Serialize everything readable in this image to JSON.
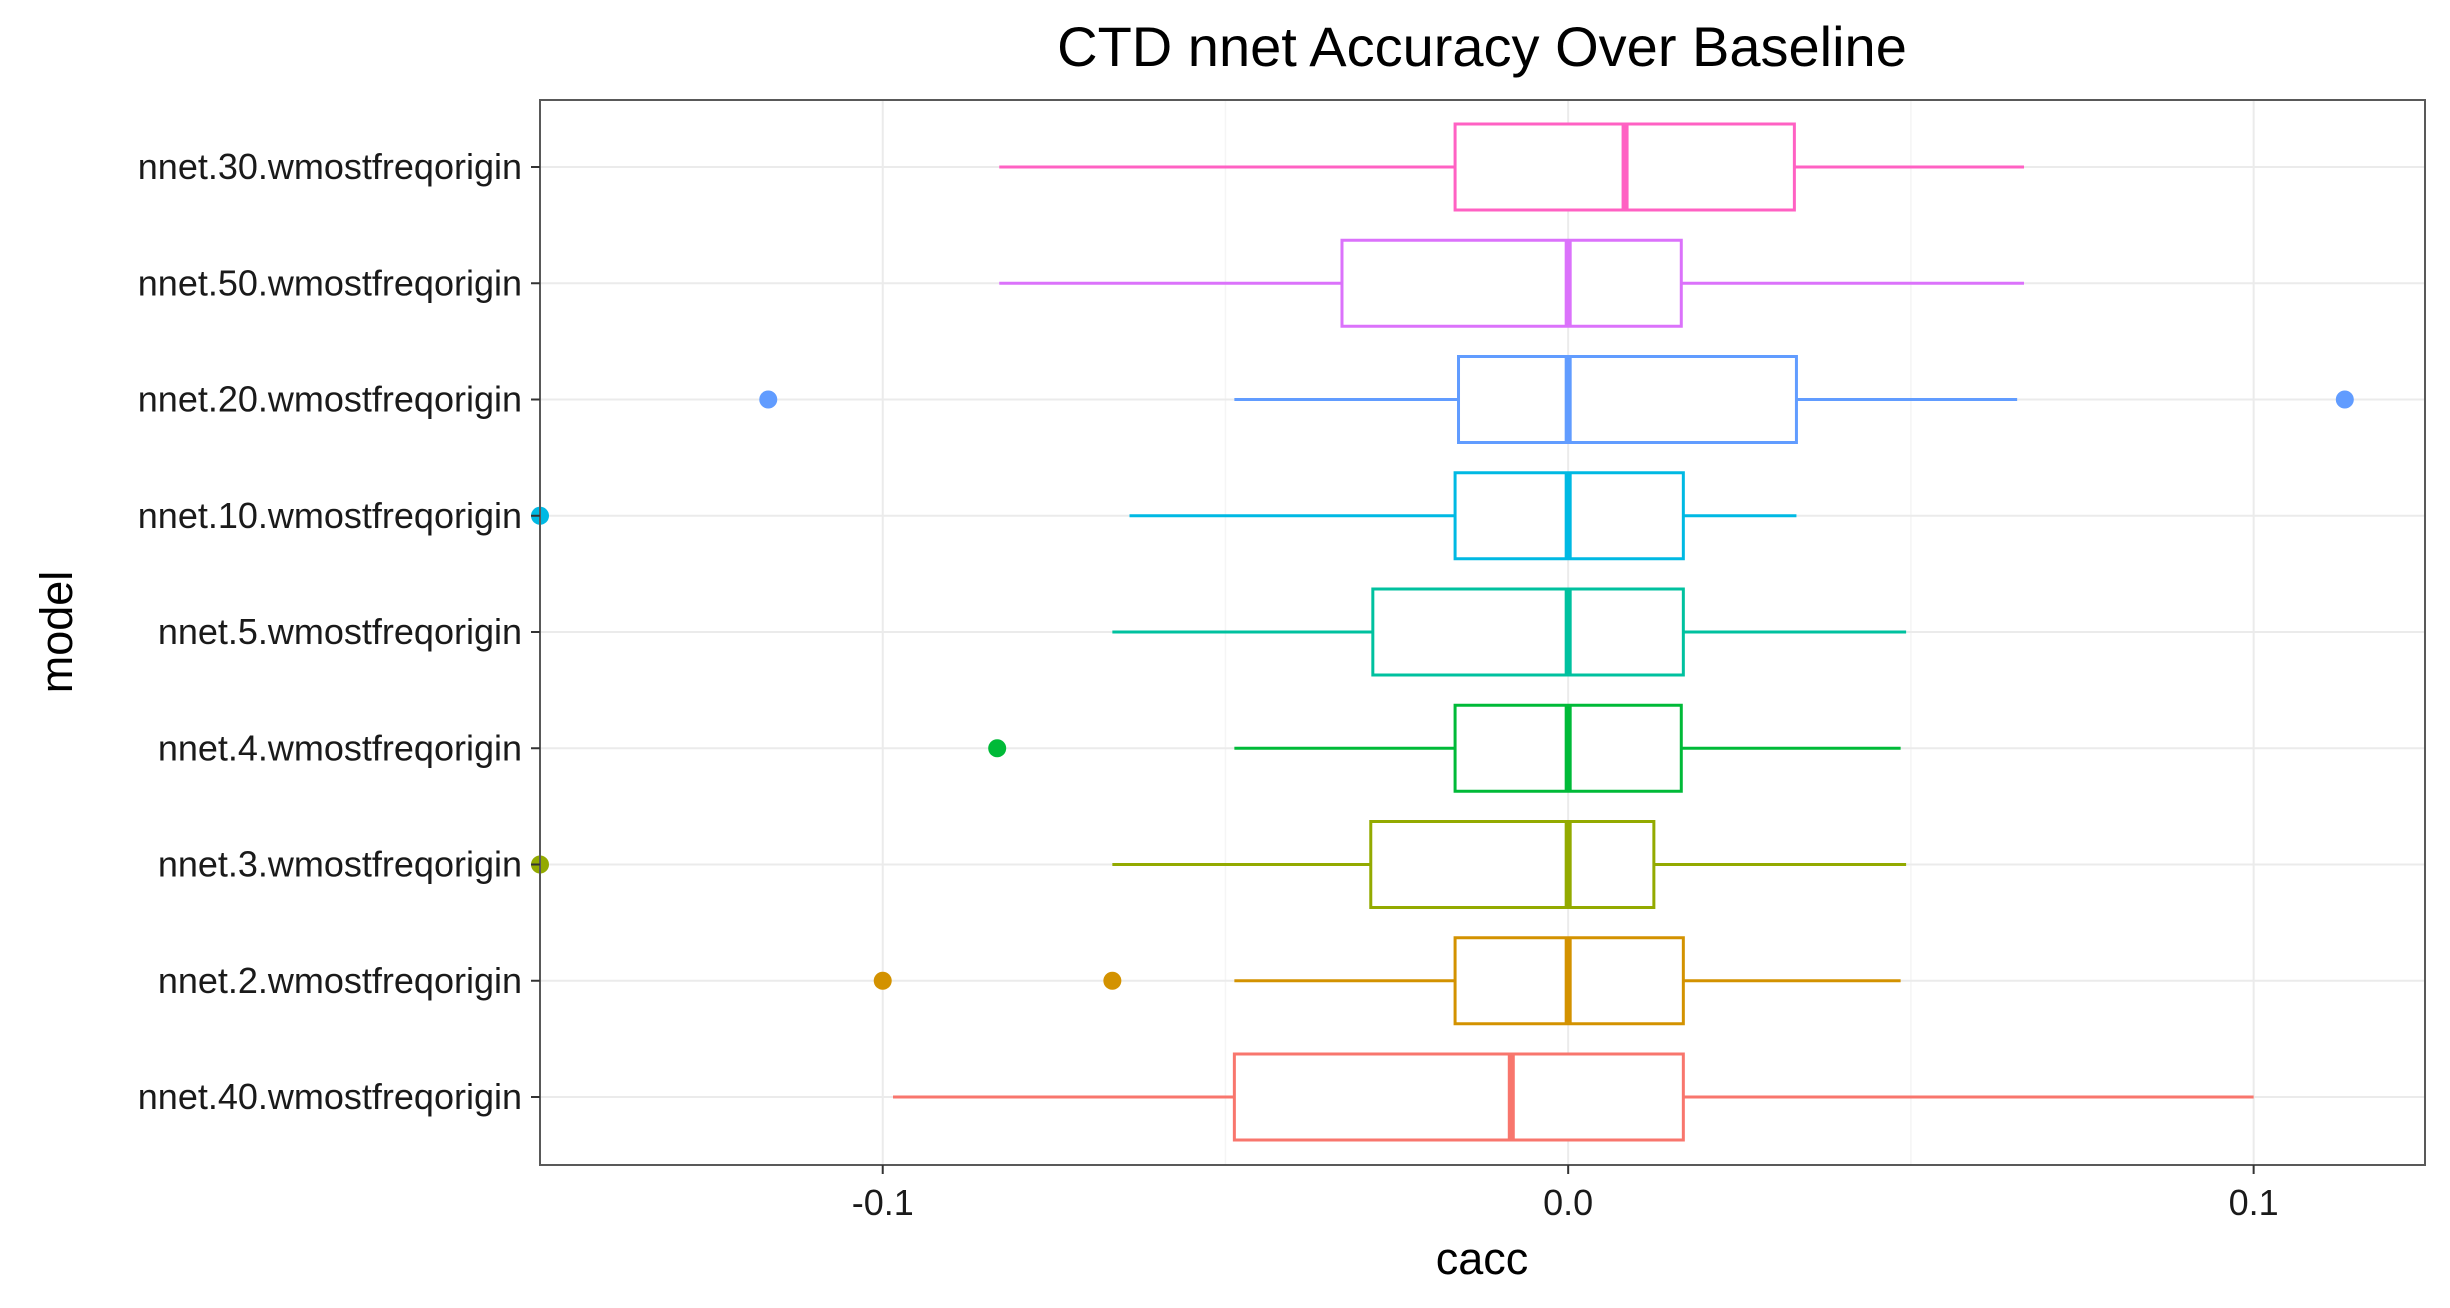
{
  "chart_data": {
    "type": "boxplot",
    "orientation": "horizontal",
    "title": "CTD nnet Accuracy Over Baseline",
    "xlabel": "cacc",
    "ylabel": "model",
    "xlim": [
      -0.15,
      0.125
    ],
    "xticks": [
      -0.1,
      0.0,
      0.1
    ],
    "xtick_labels": [
      "-0.1",
      "0.0",
      "0.1"
    ],
    "grid": true,
    "legend": "none",
    "categories_top_to_bottom": [
      "nnet.30.wmostfreqorigin",
      "nnet.50.wmostfreqorigin",
      "nnet.20.wmostfreqorigin",
      "nnet.10.wmostfreqorigin",
      "nnet.5.wmostfreqorigin",
      "nnet.4.wmostfreqorigin",
      "nnet.3.wmostfreqorigin",
      "nnet.2.wmostfreqorigin",
      "nnet.40.wmostfreqorigin"
    ],
    "series": [
      {
        "name": "nnet.30.wmostfreqorigin",
        "color": "#FF61C3",
        "whisker_low": -0.083,
        "q1": -0.0165,
        "median": 0.0083,
        "q3": 0.033,
        "whisker_high": 0.0665,
        "outliers": []
      },
      {
        "name": "nnet.50.wmostfreqorigin",
        "color": "#DB72FB",
        "whisker_low": -0.083,
        "q1": -0.033,
        "median": 0.0,
        "q3": 0.0165,
        "whisker_high": 0.0665,
        "outliers": []
      },
      {
        "name": "nnet.20.wmostfreqorigin",
        "color": "#619CFF",
        "whisker_low": -0.0487,
        "q1": -0.016,
        "median": 0.0,
        "q3": 0.0333,
        "whisker_high": 0.0655,
        "outliers": [
          -0.1167,
          0.1133
        ]
      },
      {
        "name": "nnet.10.wmostfreqorigin",
        "color": "#00B9E3",
        "whisker_low": -0.064,
        "q1": -0.0165,
        "median": 0.0,
        "q3": 0.0168,
        "whisker_high": 0.0333,
        "outliers": [
          -0.15
        ]
      },
      {
        "name": "nnet.5.wmostfreqorigin",
        "color": "#00C19F",
        "whisker_low": -0.0665,
        "q1": -0.0285,
        "median": 0.0,
        "q3": 0.0168,
        "whisker_high": 0.0493,
        "outliers": []
      },
      {
        "name": "nnet.4.wmostfreqorigin",
        "color": "#00BA38",
        "whisker_low": -0.0487,
        "q1": -0.0165,
        "median": 0.0,
        "q3": 0.0165,
        "whisker_high": 0.0485,
        "outliers": [
          -0.0833
        ]
      },
      {
        "name": "nnet.3.wmostfreqorigin",
        "color": "#93AA00",
        "whisker_low": -0.0665,
        "q1": -0.0288,
        "median": 0.0,
        "q3": 0.0125,
        "whisker_high": 0.0493,
        "outliers": [
          -0.15
        ]
      },
      {
        "name": "nnet.2.wmostfreqorigin",
        "color": "#D39200",
        "whisker_low": -0.0487,
        "q1": -0.0165,
        "median": 0.0,
        "q3": 0.0168,
        "whisker_high": 0.0485,
        "outliers": [
          -0.1,
          -0.0665
        ]
      },
      {
        "name": "nnet.40.wmostfreqorigin",
        "color": "#F8766D",
        "whisker_low": -0.0985,
        "q1": -0.0487,
        "median": -0.0083,
        "q3": 0.0168,
        "whisker_high": 0.1,
        "outliers": []
      }
    ]
  },
  "colors": {
    "panel_border": "#595959",
    "grid_major": "#EBEBEB",
    "grid_minor": "#F5F5F5",
    "tick": "#333333"
  }
}
